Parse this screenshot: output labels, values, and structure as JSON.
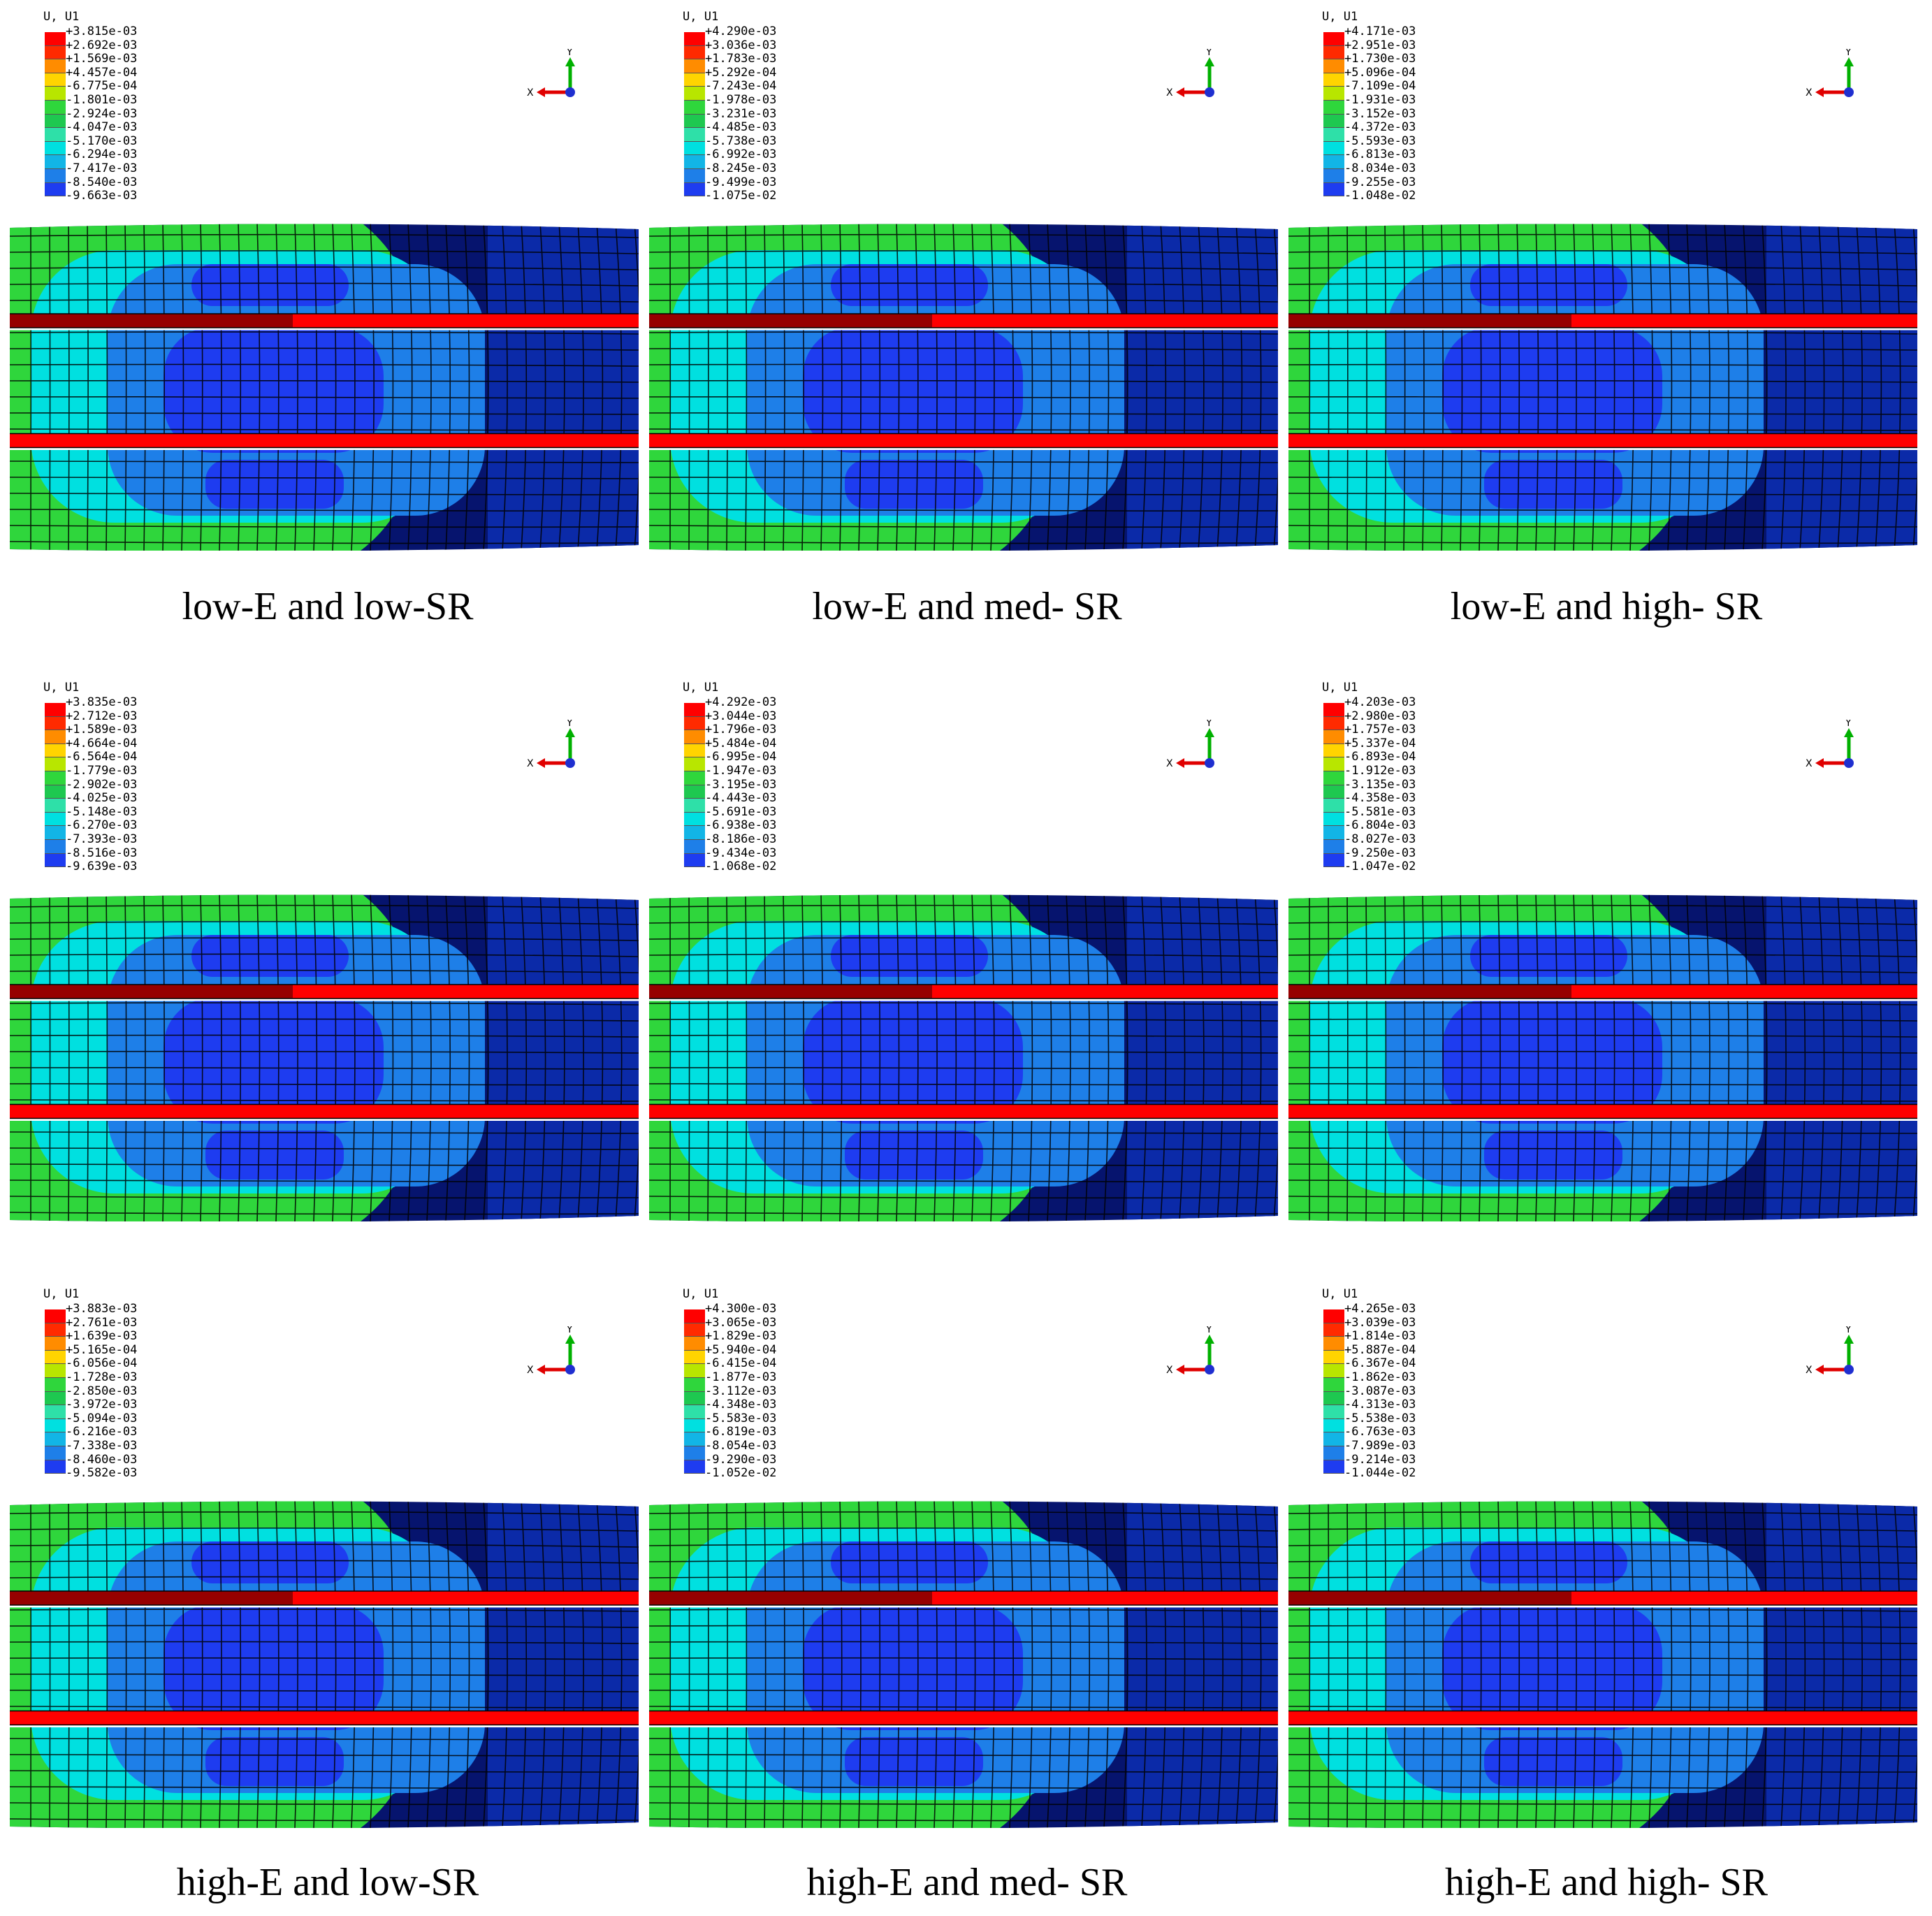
{
  "figure": {
    "legend_title": "U, U1",
    "triad_x": "X",
    "triad_y": "Y",
    "legend_colors": [
      "#ff0000",
      "#ff2a00",
      "#ff8c00",
      "#ffd400",
      "#b8e600",
      "#2fd63c",
      "#1ec850",
      "#2ee0a8",
      "#00e0e0",
      "#12b5e6",
      "#1e7fe8",
      "#1e3cf0",
      "#0000ff"
    ],
    "part_colors": {
      "outer_green": "#2fd63c",
      "cyan": "#00e0e0",
      "mid_blue": "#1e7fe8",
      "deep_blue": "#1e3cf0",
      "navy": "#06146e",
      "rebar_red": "#ff0000",
      "rebar_dark": "#8b0000",
      "mesh": "#000000"
    }
  },
  "panels": [
    {
      "caption": "low-E and low-SR",
      "levels": [
        "+3.815e-03",
        "+2.692e-03",
        "+1.569e-03",
        "+4.457e-04",
        "-6.775e-04",
        "-1.801e-03",
        "-2.924e-03",
        "-4.047e-03",
        "-5.170e-03",
        "-6.294e-03",
        "-7.417e-03",
        "-8.540e-03",
        "-9.663e-03"
      ]
    },
    {
      "caption": "low-E and med- SR",
      "levels": [
        "+4.290e-03",
        "+3.036e-03",
        "+1.783e-03",
        "+5.292e-04",
        "-7.243e-04",
        "-1.978e-03",
        "-3.231e-03",
        "-4.485e-03",
        "-5.738e-03",
        "-6.992e-03",
        "-8.245e-03",
        "-9.499e-03",
        "-1.075e-02"
      ]
    },
    {
      "caption": "low-E and high- SR",
      "levels": [
        "+4.171e-03",
        "+2.951e-03",
        "+1.730e-03",
        "+5.096e-04",
        "-7.109e-04",
        "-1.931e-03",
        "-3.152e-03",
        "-4.372e-03",
        "-5.593e-03",
        "-6.813e-03",
        "-8.034e-03",
        "-9.255e-03",
        "-1.048e-02"
      ]
    },
    {
      "caption": "",
      "levels": [
        "+3.835e-03",
        "+2.712e-03",
        "+1.589e-03",
        "+4.664e-04",
        "-6.564e-04",
        "-1.779e-03",
        "-2.902e-03",
        "-4.025e-03",
        "-5.148e-03",
        "-6.270e-03",
        "-7.393e-03",
        "-8.516e-03",
        "-9.639e-03"
      ]
    },
    {
      "caption": "",
      "levels": [
        "+4.292e-03",
        "+3.044e-03",
        "+1.796e-03",
        "+5.484e-04",
        "-6.995e-04",
        "-1.947e-03",
        "-3.195e-03",
        "-4.443e-03",
        "-5.691e-03",
        "-6.938e-03",
        "-8.186e-03",
        "-9.434e-03",
        "-1.068e-02"
      ]
    },
    {
      "caption": "",
      "levels": [
        "+4.203e-03",
        "+2.980e-03",
        "+1.757e-03",
        "+5.337e-04",
        "-6.893e-04",
        "-1.912e-03",
        "-3.135e-03",
        "-4.358e-03",
        "-5.581e-03",
        "-6.804e-03",
        "-8.027e-03",
        "-9.250e-03",
        "-1.047e-02"
      ]
    },
    {
      "caption": "high-E and low-SR",
      "levels": [
        "+3.883e-03",
        "+2.761e-03",
        "+1.639e-03",
        "+5.165e-04",
        "-6.056e-04",
        "-1.728e-03",
        "-2.850e-03",
        "-3.972e-03",
        "-5.094e-03",
        "-6.216e-03",
        "-7.338e-03",
        "-8.460e-03",
        "-9.582e-03"
      ]
    },
    {
      "caption": "high-E and med- SR",
      "levels": [
        "+4.300e-03",
        "+3.065e-03",
        "+1.829e-03",
        "+5.940e-04",
        "-6.415e-04",
        "-1.877e-03",
        "-3.112e-03",
        "-4.348e-03",
        "-5.583e-03",
        "-6.819e-03",
        "-8.054e-03",
        "-9.290e-03",
        "-1.052e-02"
      ]
    },
    {
      "caption": "high-E and high- SR",
      "levels": [
        "+4.265e-03",
        "+3.039e-03",
        "+1.814e-03",
        "+5.887e-04",
        "-6.367e-04",
        "-1.862e-03",
        "-3.087e-03",
        "-4.313e-03",
        "-5.538e-03",
        "-6.763e-03",
        "-7.989e-03",
        "-9.214e-03",
        "-1.044e-02"
      ]
    }
  ]
}
